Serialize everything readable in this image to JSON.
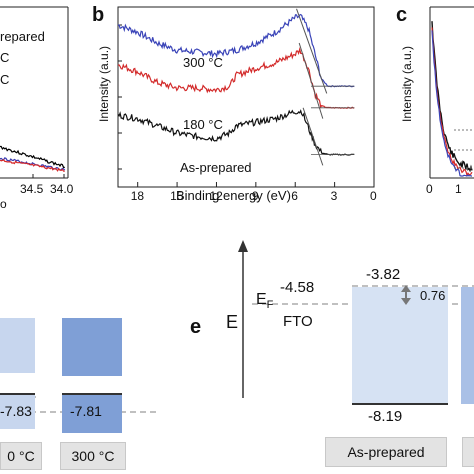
{
  "panels": {
    "a": {
      "legend": [
        "repared",
        "C",
        "C"
      ],
      "xticks": [
        "34.5",
        "34.0"
      ],
      "bottom_letter": "o",
      "series_colors": [
        "#000000",
        "#3b3bb0",
        "#d62828"
      ]
    },
    "b": {
      "letter": "b",
      "ylabel": "Intensity (a.u.)",
      "xlabel": "Binding energy (eV)",
      "xticks": [
        "18",
        "15",
        "12",
        "9",
        "6",
        "3",
        "0"
      ],
      "labels": [
        "300 °C",
        "180 °C",
        "As-prepared"
      ],
      "colors": [
        "#3a44b8",
        "#d32b2b",
        "#111111"
      ]
    },
    "c": {
      "letter": "c",
      "ylabel": "Intensity (a.u.)",
      "xticks": [
        "0",
        "1"
      ]
    },
    "d": {
      "values": [
        "-7.83",
        "-7.81"
      ],
      "labels": [
        "300 °C"
      ],
      "partial_label": "0 °C"
    },
    "e": {
      "letter": "e",
      "axis_label": "E",
      "fermi_label": "E",
      "fermi_sub": "F",
      "fto_label": "FTO",
      "fto_value": "-4.58",
      "cb_value": "-3.82",
      "vb_value": "-8.19",
      "offset_value": "0.76",
      "sample_label": "As-prepared"
    }
  },
  "chart_data": [
    {
      "type": "line",
      "title": "",
      "xlabel": "Binding energy (eV)",
      "ylabel": "Intensity (a.u.)",
      "xlim": [
        19.5,
        0
      ],
      "reversed_x": true,
      "series": [
        {
          "name": "300 °C",
          "x": [
            19.5,
            18,
            16.5,
            15,
            13.5,
            12,
            10.5,
            9,
            7.5,
            6,
            5.6,
            5,
            4.5,
            4,
            3.5,
            3,
            2,
            1.5
          ],
          "y": [
            0.9,
            0.86,
            0.8,
            0.76,
            0.75,
            0.74,
            0.76,
            0.8,
            0.86,
            0.94,
            0.95,
            0.88,
            0.74,
            0.6,
            0.56,
            0.56,
            0.56,
            0.56
          ]
        },
        {
          "name": "180 °C",
          "x": [
            19.5,
            18,
            16.5,
            15,
            13.5,
            12,
            11,
            10.5,
            9,
            7.5,
            6,
            5.6,
            5,
            4.5,
            4,
            3.5,
            3,
            2,
            1.5
          ],
          "y": [
            0.68,
            0.64,
            0.58,
            0.55,
            0.55,
            0.54,
            0.56,
            0.62,
            0.66,
            0.69,
            0.74,
            0.76,
            0.66,
            0.52,
            0.45,
            0.44,
            0.44,
            0.44,
            0.44
          ]
        },
        {
          "name": "As-prepared",
          "x": [
            19.5,
            18,
            16.5,
            15,
            13.5,
            12,
            11,
            10.5,
            9,
            7.5,
            6,
            5.5,
            5,
            4.5,
            4,
            3.5,
            3,
            2,
            1.5
          ],
          "y": [
            0.4,
            0.38,
            0.34,
            0.3,
            0.28,
            0.27,
            0.3,
            0.34,
            0.36,
            0.38,
            0.42,
            0.42,
            0.33,
            0.24,
            0.19,
            0.18,
            0.18,
            0.18,
            0.18
          ]
        }
      ]
    },
    {
      "type": "table",
      "title": "",
      "description_values": {
        "FTO E_F": -4.58,
        "As-prepared conduction band": -3.82,
        "As-prepared valence band": -8.19,
        "offset": 0.76
      }
    }
  ]
}
